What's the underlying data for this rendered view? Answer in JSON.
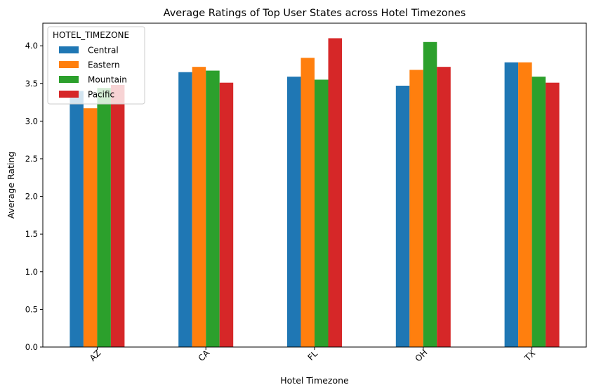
{
  "chart_data": {
    "type": "bar",
    "title": "Average Ratings of Top User States across Hotel Timezones",
    "xlabel": "Hotel Timezone",
    "ylabel": "Average Rating",
    "categories": [
      "AZ",
      "CA",
      "FL",
      "OH",
      "TX"
    ],
    "ylim": [
      0,
      4.3
    ],
    "yticks": [
      "0.0",
      "0.5",
      "1.0",
      "1.5",
      "2.0",
      "2.5",
      "3.0",
      "3.5",
      "4.0"
    ],
    "legend_title": "HOTEL_TIMEZONE",
    "legend_position": "top-left",
    "grid": false,
    "series": [
      {
        "name": "Central",
        "color": "#1f77b4",
        "values": [
          3.4,
          3.65,
          3.59,
          3.47,
          3.78
        ]
      },
      {
        "name": "Eastern",
        "color": "#ff7f0e",
        "values": [
          3.17,
          3.72,
          3.84,
          3.68,
          3.78
        ]
      },
      {
        "name": "Mountain",
        "color": "#2ca02c",
        "values": [
          3.44,
          3.67,
          3.55,
          4.05,
          3.59
        ]
      },
      {
        "name": "Pacific",
        "color": "#d62728",
        "values": [
          3.48,
          3.51,
          4.1,
          3.72,
          3.51
        ]
      }
    ]
  }
}
